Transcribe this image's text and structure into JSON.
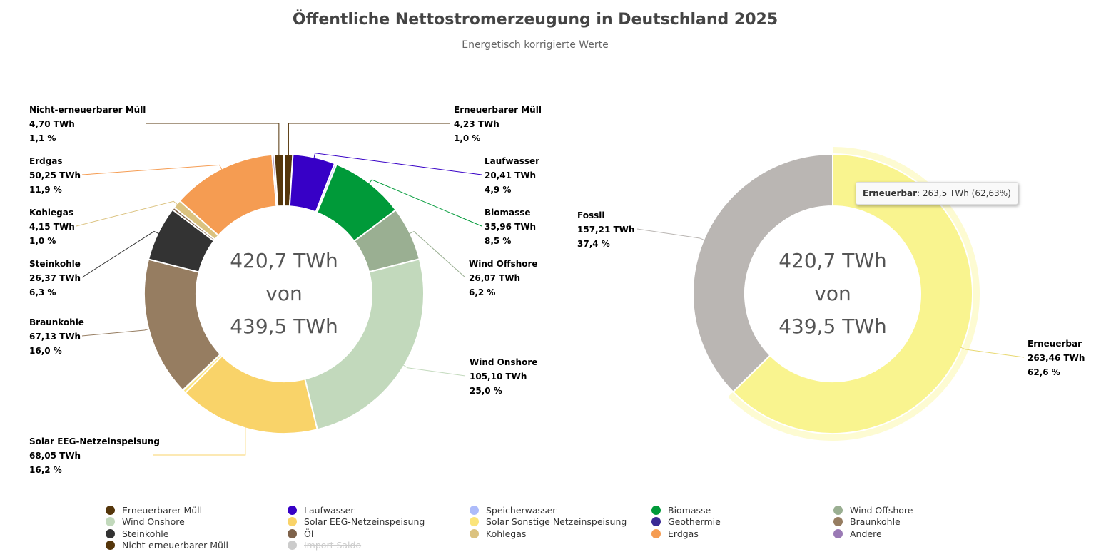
{
  "title": "Öffentliche Nettostromerzeugung in Deutschland 2025",
  "subtitle": "Energetisch korrigierte Werte",
  "chart_data": [
    {
      "type": "pie",
      "variant": "donut",
      "center_text": [
        "420,7 TWh",
        "von",
        "439,5 TWh"
      ],
      "unit": "TWh",
      "slices": [
        {
          "name": "Erneuerbarer Müll",
          "value": 4.23,
          "value_label": "4,23 TWh",
          "percent_label": "1,0 %",
          "color": "#55360b",
          "labeled": true
        },
        {
          "name": "Laufwasser",
          "value": 20.41,
          "value_label": "20,41 TWh",
          "percent_label": "4,9 %",
          "color": "#3700c6",
          "labeled": true
        },
        {
          "name": "Speicherwasser",
          "value": 1.0,
          "color": "#adbbfa",
          "labeled": false
        },
        {
          "name": "Biomasse",
          "value": 35.96,
          "value_label": "35,96 TWh",
          "percent_label": "8,5 %",
          "color": "#009a39",
          "labeled": true
        },
        {
          "name": "Wind Offshore",
          "value": 26.07,
          "value_label": "26,07 TWh",
          "percent_label": "6,2 %",
          "color": "#9aaf92",
          "labeled": true
        },
        {
          "name": "Wind Onshore",
          "value": 105.1,
          "value_label": "105,10 TWh",
          "percent_label": "25,0 %",
          "color": "#c2d9bc",
          "labeled": true
        },
        {
          "name": "Solar EEG-Netzeinspeisung",
          "value": 68.05,
          "value_label": "68,05 TWh",
          "percent_label": "16,2 %",
          "color": "#f9d369",
          "labeled": true
        },
        {
          "name": "Solar Sonstige Netzeinspeisung",
          "value": 1.6,
          "color": "#fbe47a",
          "labeled": false
        },
        {
          "name": "Geothermie",
          "value": 0.2,
          "color": "#3a2a94",
          "labeled": false
        },
        {
          "name": "Braunkohle",
          "value": 67.13,
          "value_label": "67,13 TWh",
          "percent_label": "16,0 %",
          "color": "#967d61",
          "labeled": true
        },
        {
          "name": "Steinkohle",
          "value": 26.37,
          "value_label": "26,37 TWh",
          "percent_label": "6,3 %",
          "color": "#333333",
          "labeled": true
        },
        {
          "name": "Öl",
          "value": 1.3,
          "color": "#7e624a",
          "labeled": false
        },
        {
          "name": "Kohlegas",
          "value": 4.15,
          "value_label": "4,15 TWh",
          "percent_label": "1,0 %",
          "color": "#dbc27f",
          "labeled": true
        },
        {
          "name": "Erdgas",
          "value": 50.25,
          "value_label": "50,25 TWh",
          "percent_label": "11,9 %",
          "color": "#f59c52",
          "labeled": true
        },
        {
          "name": "Andere",
          "value": 1.0,
          "color": "#9a7ab5",
          "labeled": false
        },
        {
          "name": "Nicht-erneuerbarer Müll",
          "value": 4.7,
          "value_label": "4,70 TWh",
          "percent_label": "1,1 %",
          "color": "#55360b",
          "labeled": true
        }
      ]
    },
    {
      "type": "pie",
      "variant": "donut",
      "center_text": [
        "420,7 TWh",
        "von",
        "439,5 TWh"
      ],
      "unit": "TWh",
      "slices": [
        {
          "name": "Erneuerbar",
          "value": 263.46,
          "value_label": "263,46 TWh",
          "percent_label": "62,6 %",
          "color": "#f9f48f",
          "hovered": true
        },
        {
          "name": "Fossil",
          "value": 157.21,
          "value_label": "157,21 TWh",
          "percent_label": "37,4 %",
          "color": "#bab6b3"
        }
      ],
      "tooltip": {
        "series": "Erneuerbar",
        "text": ": 263,5 TWh (62,63%)"
      }
    }
  ],
  "legend": [
    {
      "name": "Erneuerbarer Müll",
      "color": "#55360b",
      "enabled": true
    },
    {
      "name": "Laufwasser",
      "color": "#3700c6",
      "enabled": true
    },
    {
      "name": "Speicherwasser",
      "color": "#adbbfa",
      "enabled": true
    },
    {
      "name": "Biomasse",
      "color": "#009a39",
      "enabled": true
    },
    {
      "name": "Wind Offshore",
      "color": "#9aaf92",
      "enabled": true
    },
    {
      "name": "Wind Onshore",
      "color": "#c2d9bc",
      "enabled": true
    },
    {
      "name": "Solar EEG-Netzeinspeisung",
      "color": "#f9d369",
      "enabled": true
    },
    {
      "name": "Solar Sonstige Netzeinspeisung",
      "color": "#fbe47a",
      "enabled": true
    },
    {
      "name": "Geothermie",
      "color": "#3a2a94",
      "enabled": true
    },
    {
      "name": "Braunkohle",
      "color": "#967d61",
      "enabled": true
    },
    {
      "name": "Steinkohle",
      "color": "#333333",
      "enabled": true
    },
    {
      "name": "Öl",
      "color": "#7e624a",
      "enabled": true
    },
    {
      "name": "Kohlegas",
      "color": "#dbc27f",
      "enabled": true
    },
    {
      "name": "Erdgas",
      "color": "#f59c52",
      "enabled": true
    },
    {
      "name": "Andere",
      "color": "#9a7ab5",
      "enabled": true
    },
    {
      "name": "Nicht-erneuerbarer Müll",
      "color": "#55360b",
      "enabled": true
    },
    {
      "name": "Import Saldo",
      "color": "#cccccc",
      "enabled": false
    }
  ]
}
